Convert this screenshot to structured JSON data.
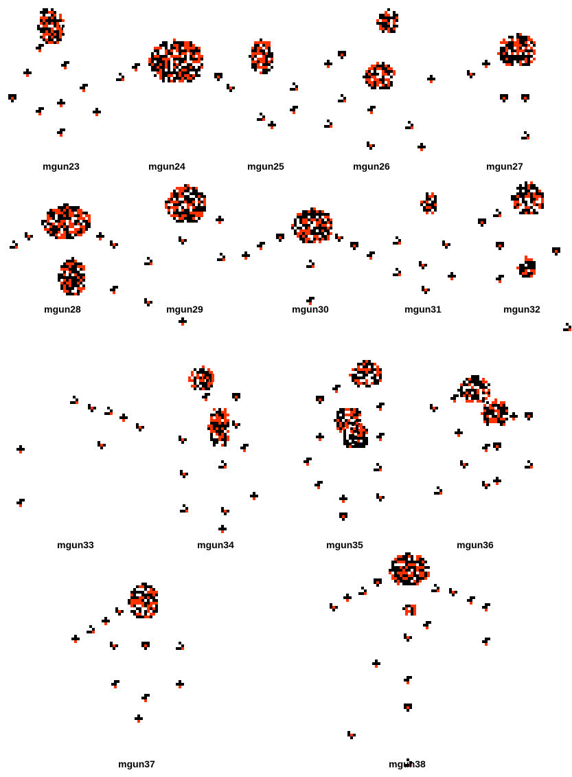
{
  "colors": {
    "background": "#ffffff",
    "cell": "#000000",
    "highlight": "#ff3300"
  },
  "patterns": [
    {
      "name": "mgun23"
    },
    {
      "name": "mgun24"
    },
    {
      "name": "mgun25"
    },
    {
      "name": "mgun26"
    },
    {
      "name": "mgun27"
    },
    {
      "name": "mgun28"
    },
    {
      "name": "mgun29"
    },
    {
      "name": "mgun30"
    },
    {
      "name": "mgun31"
    },
    {
      "name": "mgun32"
    },
    {
      "name": "mgun33"
    },
    {
      "name": "mgun34"
    },
    {
      "name": "mgun35"
    },
    {
      "name": "mgun36"
    },
    {
      "name": "mgun37"
    },
    {
      "name": "mgun38"
    }
  ]
}
